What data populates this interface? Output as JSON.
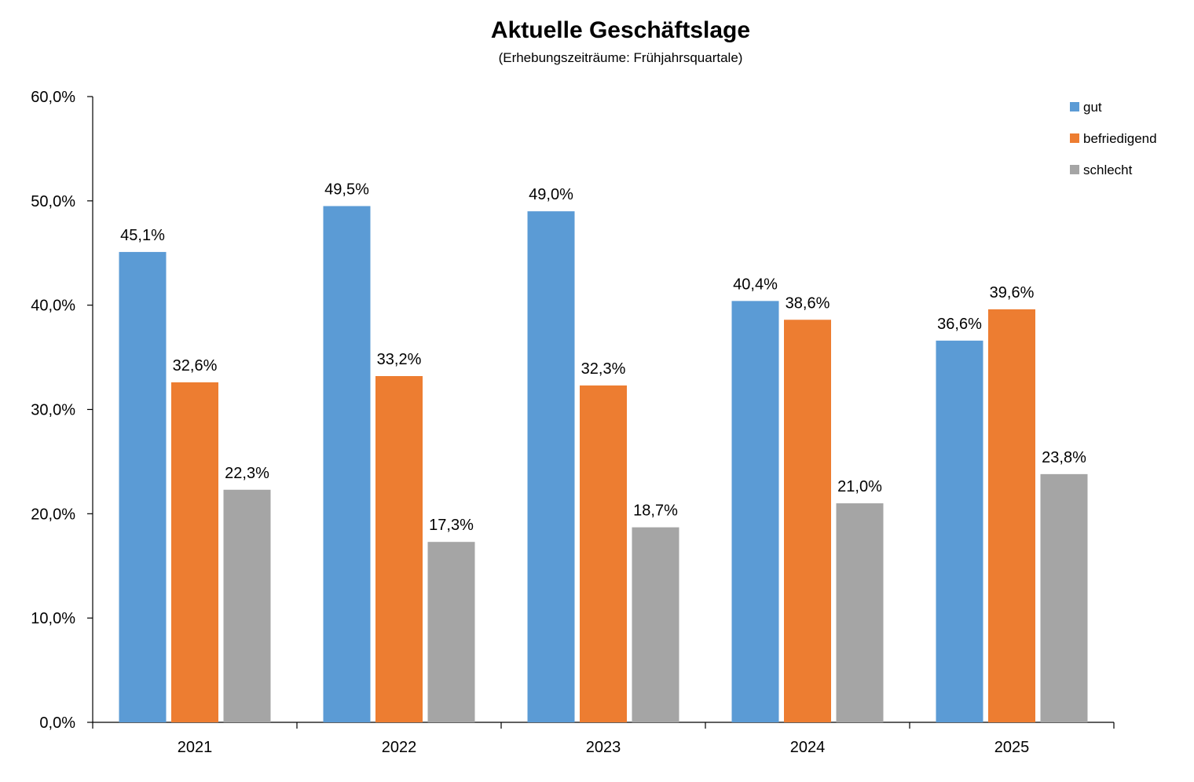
{
  "chart_data": {
    "type": "bar",
    "title": "Aktuelle Geschäftslage",
    "subtitle": "(Erhebungszeiträume: Frühjahrsquartale)",
    "categories": [
      "2021",
      "2022",
      "2023",
      "2024",
      "2025"
    ],
    "series": [
      {
        "name": "gut",
        "color": "#5B9BD5",
        "values": [
          45.1,
          49.5,
          49.0,
          40.4,
          36.6
        ],
        "labels": [
          "45,1%",
          "49,5%",
          "49,0%",
          "40,4%",
          "36,6%"
        ]
      },
      {
        "name": "befriedigend",
        "color": "#ED7D31",
        "values": [
          32.6,
          33.2,
          32.3,
          38.6,
          39.6
        ],
        "labels": [
          "32,6%",
          "33,2%",
          "32,3%",
          "38,6%",
          "39,6%"
        ]
      },
      {
        "name": "schlecht",
        "color": "#A5A5A5",
        "values": [
          22.3,
          17.3,
          18.7,
          21.0,
          23.8
        ],
        "labels": [
          "22,3%",
          "17,3%",
          "18,7%",
          "21,0%",
          "23,8%"
        ]
      }
    ],
    "ylim": [
      0,
      60
    ],
    "yticks": [
      0,
      10,
      20,
      30,
      40,
      50,
      60
    ],
    "ytick_labels": [
      "0,0%",
      "10,0%",
      "20,0%",
      "30,0%",
      "40,0%",
      "50,0%",
      "60,0%"
    ],
    "xlabel": "",
    "ylabel": "",
    "grid": false,
    "legend": "top-right"
  }
}
